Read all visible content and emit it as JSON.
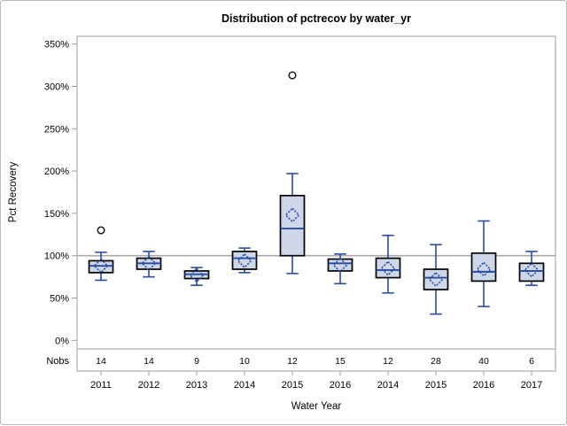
{
  "chart_data": {
    "type": "box",
    "title": "Distribution of pctrecov by water_yr",
    "xlabel": "Water Year",
    "ylabel": "Pct Recovery",
    "nobs_label": "Nobs",
    "ylim": [
      0,
      370
    ],
    "grid": false,
    "reference_line_y": 100,
    "y_ticks": [
      {
        "value": 350,
        "label": "350%"
      },
      {
        "value": 300,
        "label": "300%"
      },
      {
        "value": 250,
        "label": "250%"
      },
      {
        "value": 200,
        "label": "200%"
      },
      {
        "value": 150,
        "label": "150%"
      },
      {
        "value": 100,
        "label": "100%"
      },
      {
        "value": 50,
        "label": "50%"
      },
      {
        "value": 0,
        "label": "0%"
      }
    ],
    "categories": [
      "2011",
      "2012",
      "2013",
      "2014",
      "2015",
      "2016",
      "2014",
      "2015",
      "2016",
      "2017"
    ],
    "nobs": [
      14,
      14,
      9,
      10,
      12,
      15,
      12,
      28,
      40,
      6
    ],
    "series": [
      {
        "category": "2011",
        "low": 71,
        "q1": 80,
        "median": 88,
        "q3": 94,
        "high": 104,
        "mean": 88,
        "outliers": [
          130
        ]
      },
      {
        "category": "2012",
        "low": 75,
        "q1": 84,
        "median": 91,
        "q3": 97,
        "high": 105,
        "mean": 91,
        "outliers": []
      },
      {
        "category": "2013",
        "low": 65,
        "q1": 73,
        "median": 78,
        "q3": 82,
        "high": 86,
        "mean": 77,
        "outliers": []
      },
      {
        "category": "2014",
        "low": 80,
        "q1": 84,
        "median": 97,
        "q3": 105,
        "high": 109,
        "mean": 94,
        "outliers": []
      },
      {
        "category": "2015",
        "low": 79,
        "q1": 100,
        "median": 132,
        "q3": 171,
        "high": 197,
        "mean": 148,
        "outliers": [
          313
        ]
      },
      {
        "category": "2016",
        "low": 67,
        "q1": 82,
        "median": 91,
        "q3": 96,
        "high": 102,
        "mean": 89,
        "outliers": []
      },
      {
        "category": "2014",
        "low": 56,
        "q1": 74,
        "median": 83,
        "q3": 97,
        "high": 124,
        "mean": 85,
        "outliers": []
      },
      {
        "category": "2015",
        "low": 31,
        "q1": 60,
        "median": 74,
        "q3": 84,
        "high": 113,
        "mean": 72,
        "outliers": []
      },
      {
        "category": "2016",
        "low": 40,
        "q1": 70,
        "median": 81,
        "q3": 103,
        "high": 141,
        "mean": 84,
        "outliers": []
      },
      {
        "category": "2017",
        "low": 65,
        "q1": 70,
        "median": 82,
        "q3": 91,
        "high": 105,
        "mean": 83,
        "outliers": []
      }
    ],
    "colors": {
      "box_fill": "#cdd7e7",
      "box_stroke": "#000000",
      "whisker": "#2a4ba0",
      "median": "#2a4ba0",
      "mean_marker": "#2a4ba0",
      "outlier": "#1a1a1a",
      "frame": "#9d9d9d",
      "reference_line": "#aaaaaa",
      "text": "#000000",
      "background": "#ffffff",
      "image_border": "#b9b9b9"
    }
  }
}
